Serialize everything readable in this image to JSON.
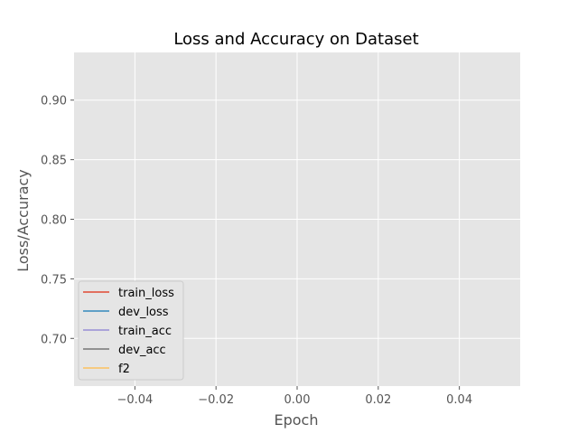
{
  "chart_data": {
    "type": "line",
    "title": "Loss and Accuracy on Dataset",
    "xlabel": "Epoch",
    "ylabel": "Loss/Accuracy",
    "xlim": [
      -0.055,
      0.055
    ],
    "ylim": [
      0.66,
      0.94
    ],
    "xticks": [
      -0.04,
      -0.02,
      0.0,
      0.02,
      0.04
    ],
    "xtick_labels": [
      "−0.04",
      "−0.02",
      "0.00",
      "0.02",
      "0.04"
    ],
    "yticks": [
      0.7,
      0.75,
      0.8,
      0.85,
      0.9
    ],
    "ytick_labels": [
      "0.70",
      "0.75",
      "0.80",
      "0.85",
      "0.90"
    ],
    "grid": true,
    "legend_placement": "lower-left",
    "series": [
      {
        "name": "train_loss",
        "color": "#E24A33",
        "x": [],
        "y": []
      },
      {
        "name": "dev_loss",
        "color": "#348ABD",
        "x": [],
        "y": []
      },
      {
        "name": "train_acc",
        "color": "#988ED5",
        "x": [],
        "y": []
      },
      {
        "name": "dev_acc",
        "color": "#777777",
        "x": [],
        "y": []
      },
      {
        "name": "f2",
        "color": "#FBC15E",
        "x": [],
        "y": []
      }
    ]
  }
}
